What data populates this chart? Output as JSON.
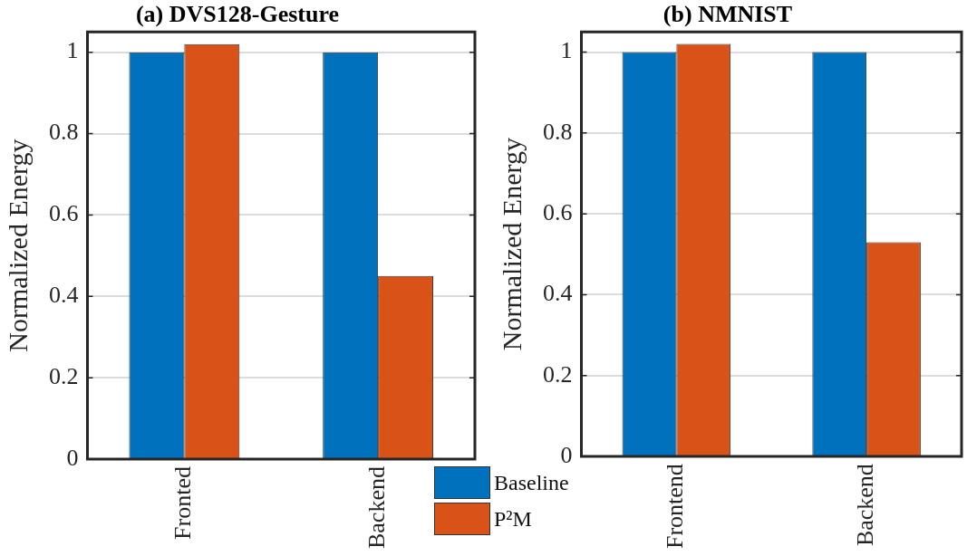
{
  "chart_data": [
    {
      "type": "bar",
      "title": "(a) DVS128-Gesture",
      "ylabel": "Normalized Energy",
      "categories": [
        "Fronted",
        "Backend"
      ],
      "series": [
        {
          "name": "Baseline",
          "color": "#0072bd",
          "values": [
            1,
            1
          ]
        },
        {
          "name": "P²M",
          "color": "#d95319",
          "values": [
            1.02,
            0.45
          ]
        }
      ],
      "ylim": [
        0,
        1.05
      ],
      "yticks": [
        0,
        0.2,
        0.4,
        0.6,
        0.8,
        1
      ],
      "grid": "y",
      "legend": "bottom right"
    },
    {
      "type": "bar",
      "title": "(b) NMNIST",
      "ylabel": "Normalized Energy",
      "categories": [
        "Frontend",
        "Backend"
      ],
      "series": [
        {
          "color": "#0072bd",
          "values": [
            1,
            1
          ]
        },
        {
          "color": "#d95319",
          "values": [
            1.02,
            0.53
          ]
        }
      ],
      "ylim": [
        0,
        1.05
      ],
      "yticks": [
        0,
        0.2,
        0.4,
        0.6,
        0.8,
        1
      ],
      "grid": "y"
    }
  ]
}
